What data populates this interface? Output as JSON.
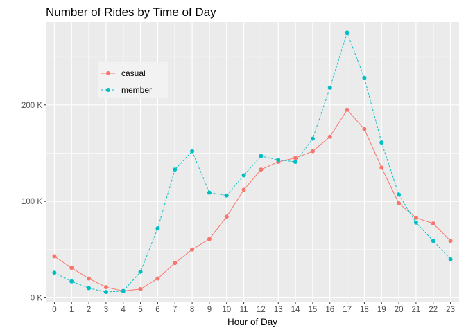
{
  "chart_data": {
    "type": "line",
    "title": "Number of Rides by Time of Day",
    "xlabel": "Hour of Day",
    "ylabel": "",
    "x": [
      0,
      1,
      2,
      3,
      4,
      5,
      6,
      7,
      8,
      9,
      10,
      11,
      12,
      13,
      14,
      15,
      16,
      17,
      18,
      19,
      20,
      21,
      22,
      23
    ],
    "x_tick_labels": [
      "0",
      "1",
      "2",
      "3",
      "4",
      "5",
      "6",
      "7",
      "8",
      "9",
      "10",
      "11",
      "12",
      "13",
      "14",
      "15",
      "16",
      "17",
      "18",
      "19",
      "20",
      "21",
      "22",
      "23"
    ],
    "xlim": [
      -0.5,
      23.5
    ],
    "ylim": [
      -4000,
      286000
    ],
    "y_ticks": [
      0,
      100000,
      200000
    ],
    "y_tick_labels": [
      "0 K",
      "100 K",
      "200 K"
    ],
    "grid": true,
    "legend_position": "top-left (inside plot)",
    "series": [
      {
        "name": "casual",
        "color": "#F8766D",
        "line_style": "solid",
        "values": [
          43000,
          31000,
          20000,
          11000,
          7000,
          9000,
          20000,
          36000,
          50000,
          61000,
          84000,
          112000,
          133000,
          141000,
          145000,
          152000,
          167000,
          195000,
          175000,
          135000,
          98000,
          83000,
          77000,
          59000
        ]
      },
      {
        "name": "member",
        "color": "#00BFC4",
        "line_style": "dashed",
        "values": [
          26000,
          17000,
          10000,
          6000,
          7000,
          27000,
          72000,
          133000,
          152000,
          109000,
          106000,
          127000,
          147000,
          143000,
          141000,
          165000,
          218000,
          275000,
          228000,
          161000,
          107000,
          78000,
          59000,
          40000
        ]
      }
    ]
  }
}
